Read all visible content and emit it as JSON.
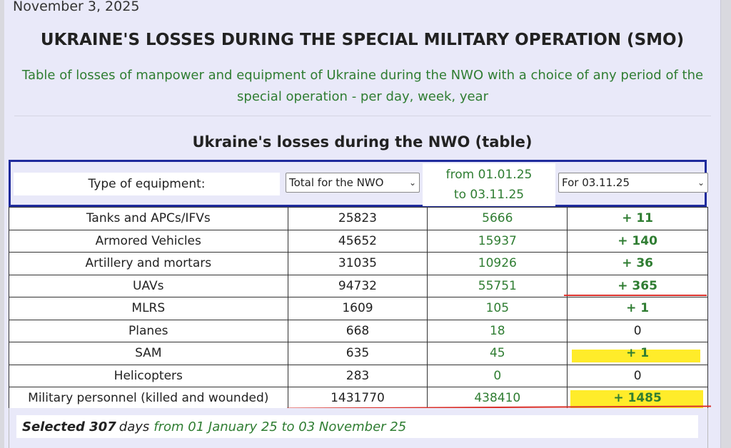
{
  "date": "November 3, 2025",
  "title": "UKRAINE'S LOSSES DURING THE SPECIAL MILITARY OPERATION (SMO)",
  "subtitle": "Table of losses of manpower and equipment of Ukraine during the NWO with a choice of any period of the special operation - per day, week, year",
  "table_title": "Ukraine's losses during the NWO (table)",
  "filters": {
    "type_label": "Type of equipment:",
    "total_select": "Total for the NWO",
    "period_line1": "from 01.01.25",
    "period_line2": "to 03.11.25",
    "day_select": "For 03.11.25"
  },
  "rows": [
    {
      "type": "Tanks and APCs/IFVs",
      "total": "25823",
      "period": "5666",
      "day": "+ 11"
    },
    {
      "type": "Armored Vehicles",
      "total": "45652",
      "period": "15937",
      "day": "+ 140"
    },
    {
      "type": "Artillery and mortars",
      "total": "31035",
      "period": "10926",
      "day": "+ 36"
    },
    {
      "type": "UAVs",
      "total": "94732",
      "period": "55751",
      "day": "+ 365"
    },
    {
      "type": "MLRS",
      "total": "1609",
      "period": "105",
      "day": "+ 1"
    },
    {
      "type": "Planes",
      "total": "668",
      "period": "18",
      "day": "0"
    },
    {
      "type": "SAM",
      "total": "635",
      "period": "45",
      "day": "+ 1"
    },
    {
      "type": "Helicopters",
      "total": "283",
      "period": "0",
      "day": "0"
    },
    {
      "type": "Military personnel (killed and wounded)",
      "total": "1431770",
      "period": "438410",
      "day": "+ 1485"
    }
  ],
  "footer": {
    "selected": "Selected 307",
    "days": "days",
    "range": "from 01 January 25 to 03 November 25"
  },
  "colors": {
    "green_text": "#2f7d32",
    "filter_border": "#1f2b9c",
    "highlight": "#ffec2a",
    "red_underline": "#d9302a"
  }
}
